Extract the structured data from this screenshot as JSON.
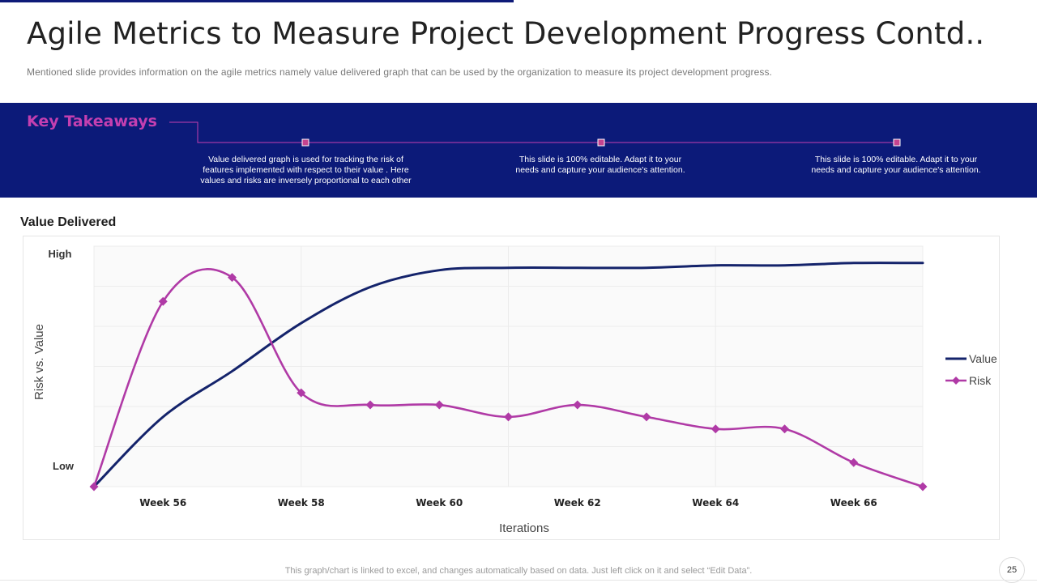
{
  "slide": {
    "title": "Agile Metrics to Measure Project Development Progress Contd..",
    "subtitle": "Mentioned slide provides  information  on the agile metrics namely value  delivered  graph that can be used by the organization  to measure its project development  progress.",
    "footer_note": "This graph/chart is linked to excel,  and changes automatically based on data. Just left click on it and select “Edit Data”.",
    "page_number": "25"
  },
  "takeaways": {
    "heading": "Key Takeaways",
    "items": [
      "Value delivered graph is used for tracking the risk of features implemented  with respect to their value . Here values and risks are inversely proportional to each other",
      "This slide is 100% editable.  Adapt it to your needs and capture your audience's attention.",
      "This slide is 100% editable.  Adapt it to your needs and capture your audience's attention."
    ]
  },
  "colors": {
    "band": "#0c1a79",
    "accent": "#c43fb0",
    "value_series": "#14236b",
    "risk_series": "#b03aa6"
  },
  "chart_data": {
    "type": "line",
    "title": "Value Delivered",
    "xlabel": "Iterations",
    "ylabel": "Risk vs. Value",
    "y_tick_labels": {
      "high": "High",
      "low": "Low"
    },
    "x": [
      55,
      56,
      57,
      58,
      59,
      60,
      61,
      62,
      63,
      64,
      65,
      66,
      67
    ],
    "x_tick_labels": [
      "Week 56",
      "Week 58",
      "Week 60",
      "Week 62",
      "Week 64",
      "Week 66"
    ],
    "x_tick_values": [
      56,
      58,
      60,
      62,
      64,
      66
    ],
    "ylim": [
      0,
      100
    ],
    "legend_position": "right",
    "grid": true,
    "series": [
      {
        "name": "Value",
        "marker": "none",
        "values": [
          0,
          29,
          48,
          68,
          83,
          90,
          91,
          91,
          91,
          92,
          92,
          93,
          93
        ]
      },
      {
        "name": "Risk",
        "marker": "diamond",
        "values": [
          0,
          77,
          87,
          39,
          34,
          34,
          29,
          34,
          29,
          24,
          24,
          10,
          0
        ]
      }
    ]
  }
}
